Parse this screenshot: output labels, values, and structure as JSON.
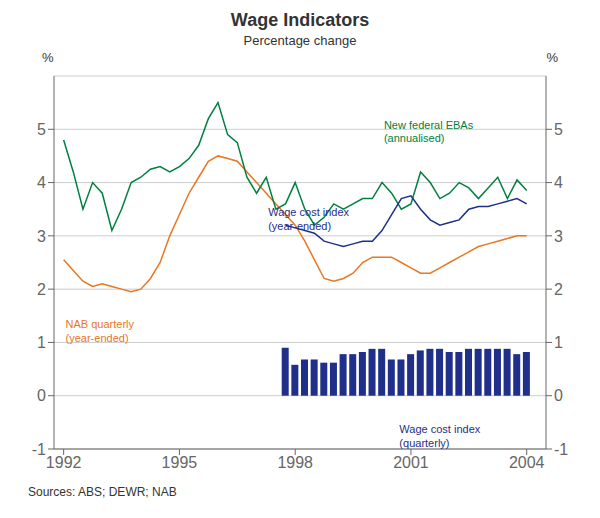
{
  "chart_data": {
    "type": "line",
    "title": "Wage Indicators",
    "subtitle": "Percentage change",
    "y_label": "%",
    "y2_label": "%",
    "source": "Sources: ABS; DEWR; NAB",
    "xlim": [
      1991.75,
      2004.5
    ],
    "xticks": [
      1992,
      1995,
      1998,
      2001,
      2004
    ],
    "ylim": [
      -1,
      6
    ],
    "yticks": [
      -1,
      0,
      1,
      2,
      3,
      4,
      5
    ],
    "y2lim": [
      -1,
      6
    ],
    "y2ticks": [
      -1,
      0,
      1,
      2,
      3,
      4,
      5
    ],
    "grid": true,
    "series": [
      {
        "type": "line",
        "color": "#E87722",
        "x": [
          1992.0,
          1992.25,
          1992.5,
          1992.75,
          1993.0,
          1993.25,
          1993.5,
          1993.75,
          1994.0,
          1994.25,
          1994.5,
          1994.75,
          1995.0,
          1995.25,
          1995.5,
          1995.75,
          1996.0,
          1996.25,
          1996.5,
          1996.75,
          1997.0,
          1997.25,
          1997.5,
          1997.75,
          1998.0,
          1998.25,
          1998.5,
          1998.75,
          1999.0,
          1999.25,
          1999.5,
          1999.75,
          2000.0,
          2000.25,
          2000.5,
          2000.75,
          2001.0,
          2001.25,
          2001.5,
          2001.75,
          2002.0,
          2002.25,
          2002.5,
          2002.75,
          2003.0,
          2003.25,
          2003.5,
          2003.75,
          2004.0
        ],
        "values": [
          2.55,
          2.35,
          2.15,
          2.05,
          2.1,
          2.05,
          2.0,
          1.95,
          2.0,
          2.2,
          2.5,
          3.0,
          3.4,
          3.8,
          4.1,
          4.4,
          4.5,
          4.45,
          4.4,
          4.2,
          4.0,
          3.8,
          3.6,
          3.4,
          3.2,
          2.9,
          2.55,
          2.2,
          2.15,
          2.2,
          2.3,
          2.5,
          2.6,
          2.6,
          2.6,
          2.5,
          2.4,
          2.3,
          2.3,
          2.4,
          2.5,
          2.6,
          2.7,
          2.8,
          2.85,
          2.9,
          2.95,
          3.0,
          3.0
        ]
      },
      {
        "type": "line",
        "color": "#008040",
        "x": [
          1992.0,
          1992.25,
          1992.5,
          1992.75,
          1993.0,
          1993.25,
          1993.5,
          1993.75,
          1994.0,
          1994.25,
          1994.5,
          1994.75,
          1995.0,
          1995.25,
          1995.5,
          1995.75,
          1996.0,
          1996.25,
          1996.5,
          1996.75,
          1997.0,
          1997.25,
          1997.5,
          1997.75,
          1998.0,
          1998.25,
          1998.5,
          1998.75,
          1999.0,
          1999.25,
          1999.5,
          1999.75,
          2000.0,
          2000.25,
          2000.5,
          2000.75,
          2001.0,
          2001.25,
          2001.5,
          2001.75,
          2002.0,
          2002.25,
          2002.5,
          2002.75,
          2003.0,
          2003.25,
          2003.5,
          2003.75,
          2004.0
        ],
        "values": [
          4.8,
          4.2,
          3.5,
          4.0,
          3.8,
          3.1,
          3.5,
          4.0,
          4.1,
          4.25,
          4.3,
          4.2,
          4.3,
          4.45,
          4.7,
          5.2,
          5.5,
          4.9,
          4.75,
          4.1,
          3.8,
          4.1,
          3.5,
          3.6,
          4.0,
          3.5,
          3.2,
          3.35,
          3.6,
          3.5,
          3.6,
          3.7,
          3.7,
          4.0,
          3.8,
          3.5,
          3.6,
          4.2,
          4.0,
          3.7,
          3.8,
          4.0,
          3.9,
          3.7,
          3.9,
          4.1,
          3.7,
          4.05,
          3.85
        ]
      },
      {
        "type": "line",
        "color": "#1F2F8A",
        "x": [
          1997.75,
          1998.0,
          1998.25,
          1998.5,
          1998.75,
          1999.0,
          1999.25,
          1999.5,
          1999.75,
          2000.0,
          2000.25,
          2000.5,
          2000.75,
          2001.0,
          2001.25,
          2001.5,
          2001.75,
          2002.0,
          2002.25,
          2002.5,
          2002.75,
          2003.0,
          2003.25,
          2003.5,
          2003.75,
          2004.0
        ],
        "values": [
          3.2,
          3.15,
          3.1,
          3.05,
          2.9,
          2.85,
          2.8,
          2.85,
          2.9,
          2.9,
          3.1,
          3.4,
          3.7,
          3.75,
          3.5,
          3.3,
          3.2,
          3.25,
          3.3,
          3.5,
          3.55,
          3.55,
          3.6,
          3.65,
          3.7,
          3.6
        ]
      },
      {
        "type": "bar",
        "color": "#1F2F8A",
        "x": [
          1997.75,
          1998.0,
          1998.25,
          1998.5,
          1998.75,
          1999.0,
          1999.25,
          1999.5,
          1999.75,
          2000.0,
          2000.25,
          2000.5,
          2000.75,
          2001.0,
          2001.25,
          2001.5,
          2001.75,
          2002.0,
          2002.25,
          2002.5,
          2002.75,
          2003.0,
          2003.25,
          2003.5,
          2003.75,
          2004.0
        ],
        "values": [
          0.9,
          0.58,
          0.68,
          0.68,
          0.62,
          0.62,
          0.78,
          0.78,
          0.82,
          0.88,
          0.88,
          0.68,
          0.68,
          0.78,
          0.85,
          0.88,
          0.88,
          0.82,
          0.82,
          0.88,
          0.88,
          0.88,
          0.88,
          0.88,
          0.78,
          0.82
        ]
      }
    ],
    "annotations": [
      {
        "text": "NAB quarterly\n(year-ended)",
        "x": 1992.05,
        "y": 1.45,
        "color": "#E87722"
      },
      {
        "text": "New federal EBAs\n(annualised)",
        "x": 2000.3,
        "y": 5.2,
        "color": "#008040"
      },
      {
        "text": "Wage cost index\n(year-ended)",
        "x": 1997.3,
        "y": 3.55,
        "color": "#1F2F8A"
      },
      {
        "text": "Wage cost index\n(quarterly)",
        "x": 2000.7,
        "y": -0.52,
        "color": "#1F2F8A"
      }
    ]
  }
}
